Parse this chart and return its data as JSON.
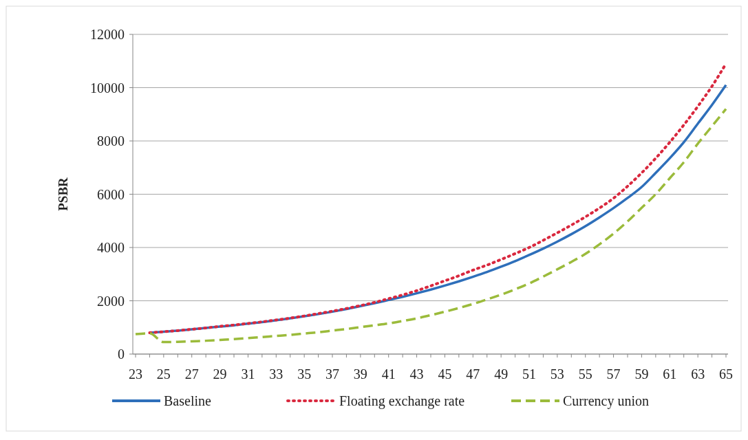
{
  "chart_data": {
    "type": "line",
    "ylabel": "PSBR",
    "categories": [
      "23",
      null,
      "25",
      null,
      "27",
      null,
      "29",
      null,
      "31",
      null,
      "33",
      null,
      "35",
      null,
      "37",
      null,
      "39",
      null,
      "41",
      null,
      "43",
      null,
      "45",
      null,
      "47",
      null,
      "49",
      null,
      "51",
      null,
      "53",
      null,
      "55",
      null,
      "57",
      null,
      "59",
      null,
      "61",
      null,
      "63",
      null,
      "65"
    ],
    "series": [
      {
        "name": "Baseline",
        "color": "#2e6fba",
        "line_style": "solid",
        "values": [
          null,
          800,
          840,
          880,
          930,
          980,
          1030,
          1080,
          1140,
          1200,
          1270,
          1340,
          1420,
          1500,
          1590,
          1690,
          1800,
          1910,
          2030,
          2150,
          2280,
          2420,
          2570,
          2730,
          2900,
          3080,
          3280,
          3490,
          3720,
          3960,
          4220,
          4500,
          4800,
          5130,
          5480,
          5860,
          6270,
          6800,
          7350,
          7950,
          8650,
          9350,
          10100
        ]
      },
      {
        "name": "Floating exchange rate",
        "color": "#d9283e",
        "line_style": "dotted",
        "values": [
          null,
          800,
          840,
          880,
          930,
          980,
          1040,
          1090,
          1150,
          1210,
          1280,
          1350,
          1430,
          1520,
          1610,
          1710,
          1820,
          1940,
          2080,
          2220,
          2380,
          2560,
          2750,
          2940,
          3150,
          3340,
          3550,
          3770,
          4000,
          4270,
          4550,
          4840,
          5150,
          5480,
          5850,
          6300,
          6800,
          7350,
          7950,
          8600,
          9300,
          10050,
          10900
        ]
      },
      {
        "name": "Currency union",
        "color": "#9bbb3b",
        "line_style": "dashed",
        "values": [
          750,
          780,
          450,
          460,
          480,
          500,
          530,
          560,
          600,
          640,
          680,
          720,
          770,
          820,
          880,
          940,
          1010,
          1080,
          1150,
          1240,
          1340,
          1460,
          1590,
          1730,
          1880,
          2050,
          2230,
          2430,
          2650,
          2910,
          3180,
          3460,
          3760,
          4120,
          4520,
          4980,
          5490,
          6000,
          6600,
          7200,
          7900,
          8550,
          9200
        ]
      }
    ],
    "ylim": [
      0,
      12000
    ],
    "yticks": [
      0,
      2000,
      4000,
      6000,
      8000,
      10000,
      12000
    ],
    "grid": "y",
    "legend": "bottom",
    "marker": "none"
  }
}
